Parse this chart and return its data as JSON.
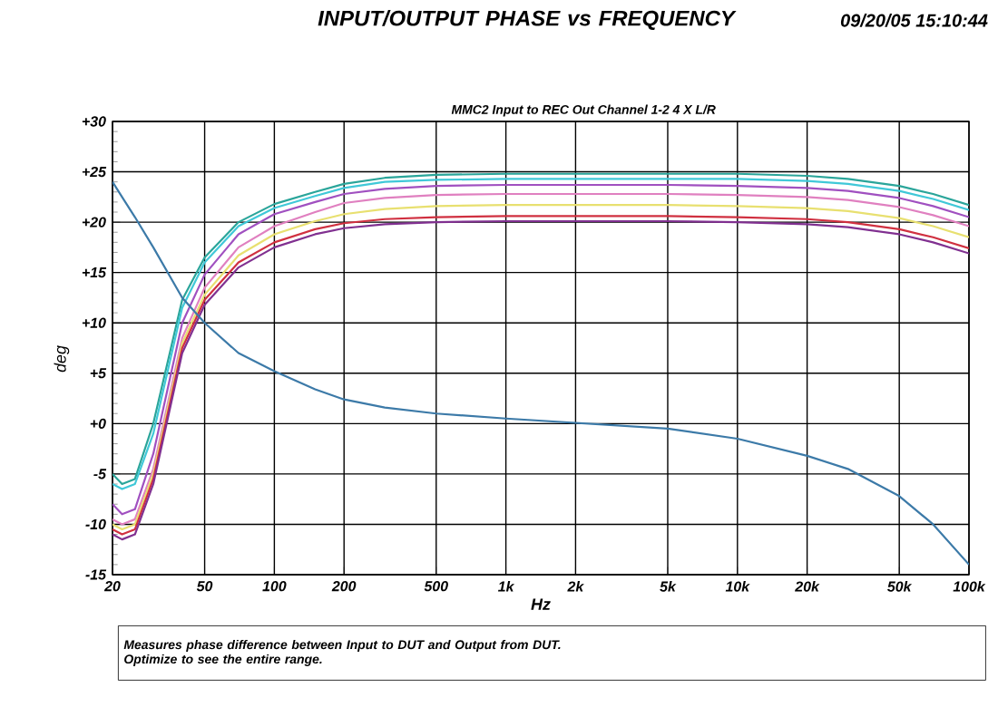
{
  "chart_data": {
    "type": "line",
    "title": "INPUT/OUTPUT PHASE vs FREQUENCY",
    "subtitle": "MMC2 Input to REC Out Channel 1-2 4 X L/R",
    "xlabel": "Hz",
    "ylabel": "deg",
    "annotations": [
      "09/20/05 15:10:44",
      "Measures phase difference between Input to DUT and Output from DUT.",
      "Optimize to see the entire range."
    ],
    "log": "x",
    "grid": true,
    "xlim": [
      20,
      100000
    ],
    "ylim": [
      -15,
      30
    ],
    "xticks": [
      20,
      50,
      100,
      200,
      500,
      {
        "value": 1000,
        "label": "1k"
      },
      {
        "value": 2000,
        "label": "2k"
      },
      {
        "value": 5000,
        "label": "5k"
      },
      {
        "value": 10000,
        "label": "10k"
      },
      {
        "value": 20000,
        "label": "20k"
      },
      {
        "value": 50000,
        "label": "50k"
      },
      {
        "value": 100000,
        "label": "100k"
      }
    ],
    "yticks": [
      {
        "value": -15,
        "label": "-15"
      },
      {
        "value": -10,
        "label": "-10"
      },
      {
        "value": -5,
        "label": "-5"
      },
      {
        "value": 0,
        "label": "+0"
      },
      {
        "value": 5,
        "label": "+5"
      },
      {
        "value": 10,
        "label": "+10"
      },
      {
        "value": 15,
        "label": "+15"
      },
      {
        "value": 20,
        "label": "+20"
      },
      {
        "value": 25,
        "label": "+25"
      },
      {
        "value": 30,
        "label": "+30"
      }
    ],
    "x": [
      20,
      22,
      25,
      30,
      40,
      50,
      70,
      100,
      150,
      200,
      300,
      500,
      1000,
      5000,
      10000,
      20000,
      30000,
      50000,
      70000,
      100000
    ],
    "series": [
      {
        "color": "#2aa59a",
        "values": [
          -5,
          -6,
          -5.5,
          0,
          12.3,
          16.5,
          20,
          21.8,
          23,
          23.8,
          24.4,
          24.7,
          24.8,
          24.8,
          24.8,
          24.6,
          24.3,
          23.6,
          22.8,
          21.7
        ]
      },
      {
        "color": "#40c8d8",
        "values": [
          -6,
          -6.5,
          -6,
          -1,
          11.5,
          16,
          19.6,
          21.4,
          22.6,
          23.4,
          24,
          24.2,
          24.3,
          24.3,
          24.3,
          24.1,
          23.8,
          23.1,
          22.3,
          21.2
        ]
      },
      {
        "color": "#a050c0",
        "values": [
          -8,
          -9,
          -8.5,
          -3,
          10,
          14.8,
          18.8,
          20.8,
          22,
          22.8,
          23.3,
          23.6,
          23.7,
          23.7,
          23.6,
          23.4,
          23.1,
          22.4,
          21.6,
          20.5
        ]
      },
      {
        "color": "#e080c0",
        "values": [
          -9.5,
          -10,
          -9.5,
          -4.5,
          8.5,
          13.5,
          17.5,
          19.6,
          21,
          21.9,
          22.4,
          22.7,
          22.8,
          22.8,
          22.7,
          22.5,
          22.2,
          21.5,
          20.7,
          19.6
        ]
      },
      {
        "color": "#e8e070",
        "values": [
          -10,
          -10.5,
          -10,
          -5,
          8,
          12.8,
          16.7,
          18.8,
          20.1,
          20.8,
          21.3,
          21.6,
          21.7,
          21.7,
          21.6,
          21.4,
          21.1,
          20.4,
          19.6,
          18.5
        ]
      },
      {
        "color": "#d03040",
        "values": [
          -10.5,
          -11,
          -10.5,
          -5.5,
          7.5,
          12.3,
          16,
          18,
          19.3,
          19.9,
          20.3,
          20.5,
          20.6,
          20.6,
          20.5,
          20.3,
          20,
          19.3,
          18.5,
          17.4
        ]
      },
      {
        "color": "#803090",
        "values": [
          -11,
          -11.5,
          -11,
          -6,
          7,
          11.8,
          15.5,
          17.5,
          18.8,
          19.4,
          19.8,
          20,
          20.1,
          20.1,
          20,
          19.8,
          19.5,
          18.8,
          18,
          16.9
        ]
      },
      {
        "color": "#3c7aa8",
        "values": [
          24,
          22.5,
          20.5,
          17.5,
          12.5,
          10,
          7,
          5.2,
          3.4,
          2.4,
          1.6,
          1,
          0.5,
          -0.5,
          -1.5,
          -3.2,
          -4.5,
          -7.2,
          -10,
          -14
        ]
      }
    ]
  }
}
